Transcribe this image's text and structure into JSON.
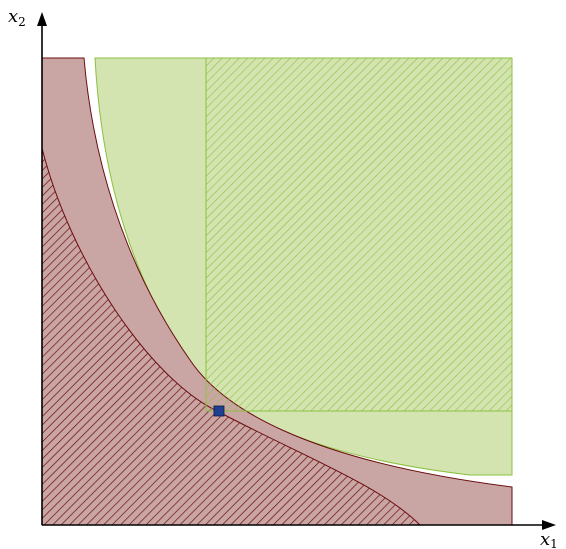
{
  "axes": {
    "x_label": "x",
    "x_subscript": "1",
    "y_label": "x",
    "y_subscript": "2"
  },
  "colors": {
    "red_region_fill": "#c9a5a4",
    "red_region_stroke": "#6b0d0d",
    "red_hatch": "#6b0d0d",
    "green_region_fill": "#d3e4b0",
    "green_region_stroke": "#8dbf3f",
    "green_hatch": "#8dbf3f",
    "point_fill": "#1f3f8f",
    "axis_color": "#000000"
  }
}
